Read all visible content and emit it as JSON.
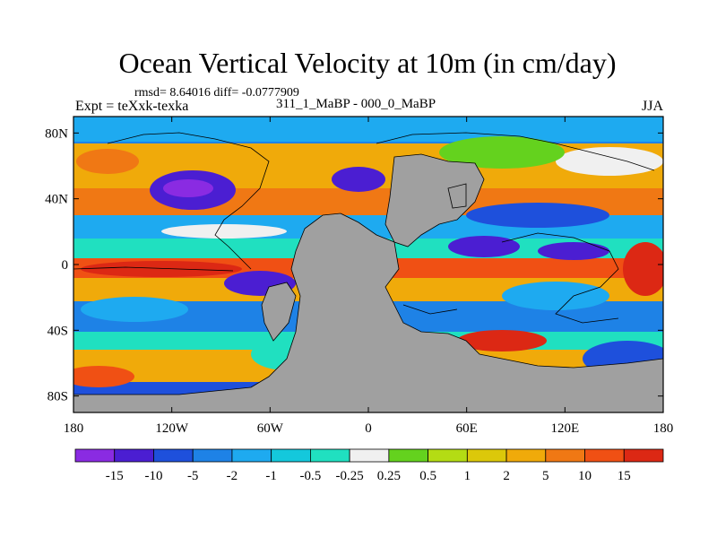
{
  "title": "Ocean Vertical Velocity at 10m (in cm/day)",
  "stats_line": "rmsd= 8.64016 diff= -0.0777909",
  "experiment_label": "Expt = teXxk-texka",
  "difference_label": "311_1_MaBP - 000_0_MaBP",
  "season_label": "JJA",
  "map": {
    "lat_ticks": [
      "80N",
      "40N",
      "0",
      "40S",
      "80S"
    ],
    "lat_values": [
      80,
      40,
      0,
      -40,
      -80
    ],
    "lon_ticks": [
      "180",
      "120W",
      "60W",
      "0",
      "60E",
      "120E",
      "180"
    ],
    "lon_values": [
      -180,
      -120,
      -60,
      0,
      60,
      120,
      180
    ],
    "lon_range": [
      -180,
      180
    ],
    "lat_range": [
      -90,
      90
    ],
    "land_color": "#a0a0a0"
  },
  "colorbar": {
    "labels": [
      "-15",
      "-10",
      "-5",
      "-2",
      "-1",
      "-0.5",
      "-0.25",
      "0.25",
      "0.5",
      "1",
      "2",
      "5",
      "10",
      "15"
    ],
    "colors": [
      "#8a2be2",
      "#4b1ed2",
      "#1e50dc",
      "#1e82e6",
      "#1eaaf0",
      "#14c8dc",
      "#20e0c0",
      "#f0f0f0",
      "#64d21e",
      "#b4dc14",
      "#dcc80a",
      "#f0aa0a",
      "#f07814",
      "#f05014",
      "#dc2814"
    ]
  }
}
